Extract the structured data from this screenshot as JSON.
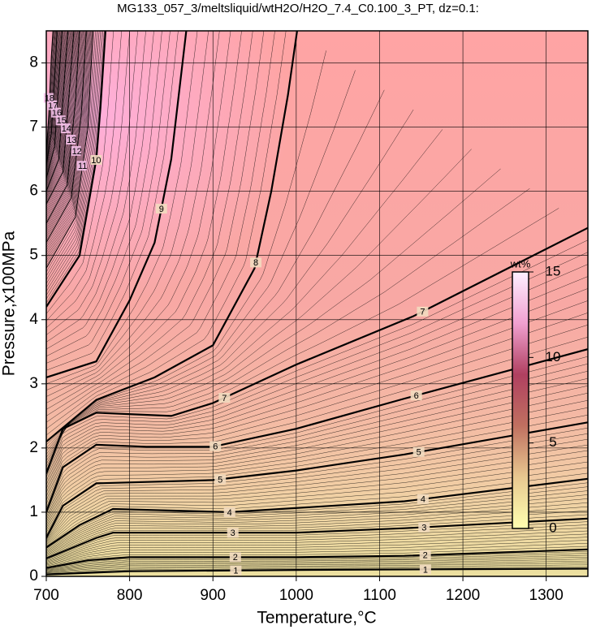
{
  "chart_data": {
    "type": "contour",
    "title": "MG133_057_3/meltsliquid/wtH2O/H2O_7.4_C0.100_3_PT, dz=0.1:",
    "x_label": "Temperature,°C",
    "y_label": "Pressure,x100MPa",
    "xlim": [
      700,
      1350
    ],
    "ylim": [
      0,
      8.5
    ],
    "xticks": [
      700,
      800,
      900,
      1000,
      1100,
      1200,
      1300
    ],
    "yticks": [
      0,
      1,
      2,
      3,
      4,
      5,
      6,
      7,
      8
    ],
    "grid": true,
    "line_color": "#000000",
    "colorbar": {
      "label": "wt%",
      "lim": [
        0,
        15
      ],
      "ticks": [
        0,
        5,
        10,
        15
      ],
      "colors": [
        "#ffffb0",
        "#e8c890",
        "#c07060",
        "#b04060",
        "#f0a0d0",
        "#fff0ff"
      ]
    },
    "contours": [
      {
        "level": 1,
        "x": [
          700,
          800,
          1000,
          1350
        ],
        "y": [
          0.03,
          0.08,
          0.1,
          0.12
        ]
      },
      {
        "level": 2,
        "x": [
          700,
          750,
          800,
          1000,
          1130,
          1350
        ],
        "y": [
          0.13,
          0.25,
          0.3,
          0.3,
          0.32,
          0.42
        ]
      },
      {
        "level": 3,
        "x": [
          700,
          760,
          780,
          1000,
          1130,
          1350
        ],
        "y": [
          0.28,
          0.6,
          0.68,
          0.68,
          0.75,
          0.9
        ]
      },
      {
        "level": 4,
        "x": [
          700,
          740,
          780,
          920,
          1130,
          1350
        ],
        "y": [
          0.45,
          0.8,
          1.05,
          1.0,
          1.17,
          1.52
        ]
      },
      {
        "level": 5,
        "x": [
          700,
          720,
          760,
          900,
          1000,
          1130,
          1350
        ],
        "y": [
          0.6,
          1.1,
          1.45,
          1.5,
          1.65,
          1.9,
          2.4
        ]
      },
      {
        "level": 6,
        "x": [
          700,
          720,
          760,
          820,
          900,
          1000,
          1130,
          1350
        ],
        "y": [
          1.0,
          1.7,
          2.05,
          2.02,
          2.02,
          2.3,
          2.77,
          3.54
        ]
      },
      {
        "level": 7,
        "x": [
          700,
          720,
          760,
          850,
          900,
          1000,
          1140,
          1350
        ],
        "y": [
          1.6,
          2.3,
          2.55,
          2.5,
          2.7,
          3.3,
          4.05,
          5.43
        ]
      },
      {
        "level": 8,
        "x": [
          700,
          760,
          830,
          900,
          950,
          970,
          990,
          1001
        ],
        "y": [
          2.1,
          2.75,
          3.1,
          3.6,
          4.8,
          6.0,
          7.5,
          8.5
        ]
      },
      {
        "level": 9,
        "x": [
          700,
          760,
          800,
          830,
          850,
          868
        ],
        "y": [
          3.1,
          3.35,
          4.3,
          5.2,
          6.5,
          8.5
        ]
      },
      {
        "level": 10,
        "x": [
          700,
          740,
          760,
          765,
          771
        ],
        "y": [
          4.2,
          5.0,
          6.5,
          7.3,
          8.5
        ]
      },
      {
        "level": 11,
        "x": [
          700,
          735,
          750,
          756
        ],
        "y": [
          4.8,
          5.6,
          7.0,
          8.5
        ]
      },
      {
        "level": 12,
        "x": [
          700,
          730,
          742,
          748
        ],
        "y": [
          5.2,
          5.9,
          7.2,
          8.5
        ]
      },
      {
        "level": 13,
        "x": [
          700,
          725,
          735,
          740
        ],
        "y": [
          5.5,
          6.1,
          7.4,
          8.5
        ]
      },
      {
        "level": 14,
        "x": [
          700,
          720,
          728,
          733
        ],
        "y": [
          5.8,
          6.3,
          7.6,
          8.5
        ]
      },
      {
        "level": 15,
        "x": [
          700,
          715,
          722,
          726
        ],
        "y": [
          6.0,
          6.5,
          7.8,
          8.5
        ]
      },
      {
        "level": 16,
        "x": [
          700,
          710,
          716,
          719
        ],
        "y": [
          6.2,
          6.7,
          7.9,
          8.5
        ]
      },
      {
        "level": 17,
        "x": [
          700,
          706,
          711,
          713
        ],
        "y": [
          6.4,
          6.9,
          8.0,
          8.5
        ]
      },
      {
        "level": 18,
        "x": [
          700,
          703,
          706,
          708
        ],
        "y": [
          6.6,
          7.2,
          8.1,
          8.5
        ]
      }
    ]
  }
}
